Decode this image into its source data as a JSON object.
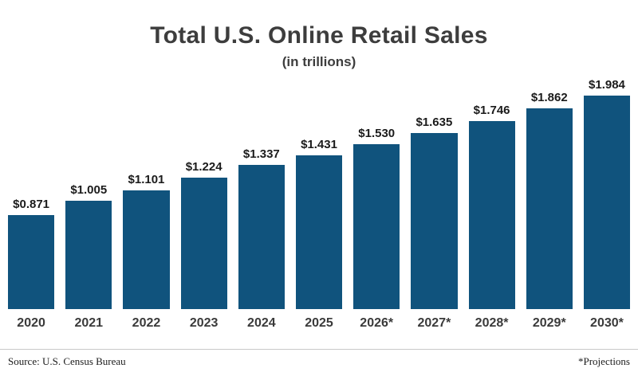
{
  "header": {
    "title": "Total U.S. Online Retail Sales",
    "subtitle": "(in trillions)"
  },
  "footer": {
    "source": "Source: U.S. Census Bureau",
    "note": "*Projections"
  },
  "colors": {
    "bar": "#10537d",
    "title": "#3d3d3d",
    "value_label": "#1b1b1b"
  },
  "chart_data": {
    "type": "bar",
    "title": "Total U.S. Online Retail Sales",
    "subtitle": "(in trillions)",
    "categories": [
      "2020",
      "2021",
      "2022",
      "2023",
      "2024",
      "2025",
      "2026*",
      "2027*",
      "2028*",
      "2029*",
      "2030*"
    ],
    "values": [
      0.871,
      1.005,
      1.101,
      1.224,
      1.337,
      1.431,
      1.53,
      1.635,
      1.746,
      1.862,
      1.984
    ],
    "value_labels": [
      "$0.871",
      "$1.005",
      "$1.101",
      "$1.224",
      "$1.337",
      "$1.431",
      "$1.530",
      "$1.635",
      "$1.746",
      "$1.862",
      "$1.984"
    ],
    "xlabel": "",
    "ylabel": "",
    "ylim": [
      0,
      2.1
    ],
    "grid": false,
    "legend": "none",
    "bar_color": "#10537d",
    "annotations": [
      "Source: U.S. Census Bureau",
      "*Projections"
    ]
  }
}
